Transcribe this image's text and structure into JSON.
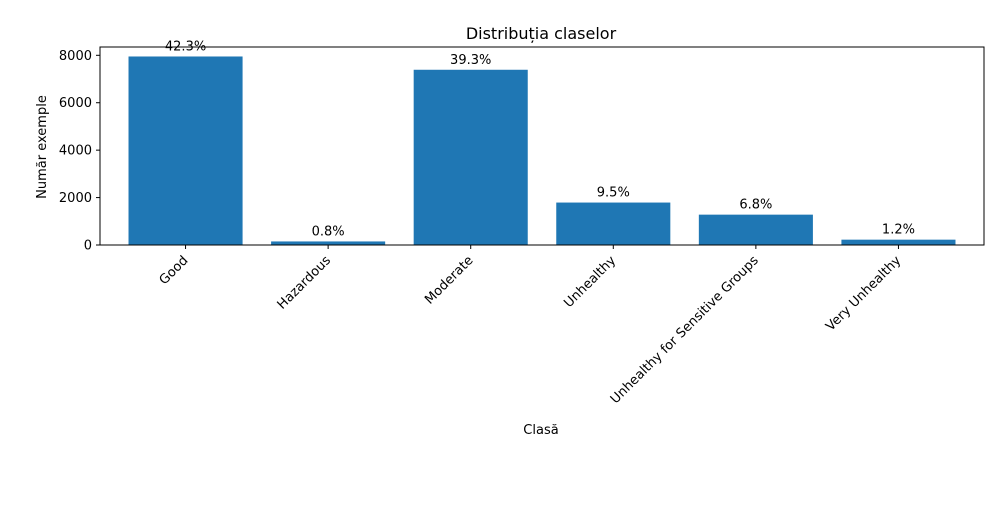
{
  "chart_data": {
    "type": "bar",
    "title": "Distribuția claselor",
    "xlabel": "Clasă",
    "ylabel": "Număr exemple",
    "categories": [
      "Good",
      "Hazardous",
      "Moderate",
      "Unhealthy",
      "Unhealthy for Sensitive Groups",
      "Very Unhealthy"
    ],
    "values": [
      7950,
      150,
      7390,
      1790,
      1280,
      225
    ],
    "data_labels": [
      "42.3%",
      "0.8%",
      "39.3%",
      "9.5%",
      "6.8%",
      "1.2%"
    ],
    "yticks": [
      0,
      2000,
      4000,
      6000,
      8000
    ],
    "ytick_labels": [
      "0",
      "2000",
      "4000",
      "6000",
      "8000"
    ],
    "ylim": [
      0,
      8350
    ],
    "grid": false,
    "bar_color": "#1f77b4"
  }
}
